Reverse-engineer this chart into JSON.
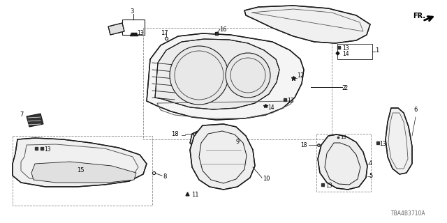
{
  "bg_color": "#ffffff",
  "part_number": "TBA4B3710A",
  "line_color": "#1a1a1a",
  "label_color": "#000000",
  "dashed_color": "#888888"
}
